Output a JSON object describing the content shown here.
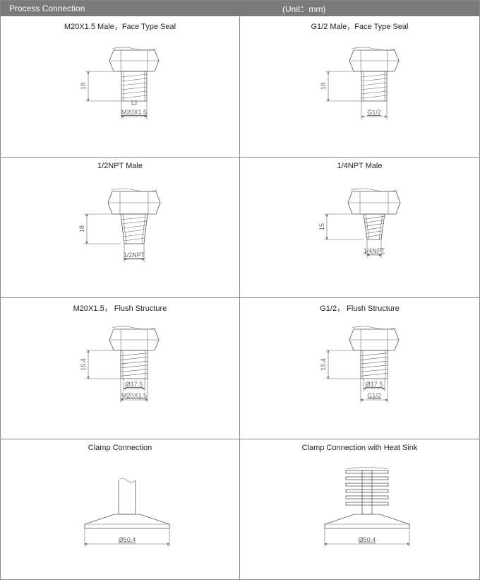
{
  "header": {
    "left": "Process    Connection",
    "right": "(Unit：mm)"
  },
  "header_bg": "#7a7a7a",
  "header_fg": "#ffffff",
  "border_color": "#888888",
  "line_color": "#666666",
  "text_color": "#222222",
  "dim_text_color": "#666666",
  "cells": [
    {
      "title": "M20X1.5 Male，Face Type Seal",
      "type": "hex-threaded",
      "height_label": "18",
      "thread_label": "M20X1.5",
      "hex_width": 70,
      "hex_height": 30,
      "shaft_width": 36,
      "shaft_height": 42,
      "threaded": true,
      "taper": false,
      "bottom_tooth": true
    },
    {
      "title": "G1/2 Male，Face Type Seal",
      "type": "hex-threaded",
      "height_label": "18",
      "thread_label": "G1/2",
      "hex_width": 70,
      "hex_height": 30,
      "shaft_width": 36,
      "shaft_height": 42,
      "threaded": true,
      "taper": false,
      "bottom_tooth": false
    },
    {
      "title": "1/2NPT Male",
      "type": "hex-threaded",
      "height_label": "18",
      "thread_label": "1/2NPT",
      "hex_width": 74,
      "hex_height": 32,
      "shaft_width": 38,
      "shaft_height": 42,
      "threaded": true,
      "taper": true,
      "bottom_tooth": false
    },
    {
      "title": "1/4NPT Male",
      "type": "hex-threaded",
      "height_label": "15",
      "thread_label": "1/4NPT",
      "hex_width": 74,
      "hex_height": 32,
      "shaft_width": 30,
      "shaft_height": 36,
      "threaded": true,
      "taper": true,
      "bottom_tooth": false
    },
    {
      "title": "M20X1.5， Flush Structure",
      "type": "hex-flush",
      "height_label": "15.4",
      "thread_label": "M20X1.5",
      "dia_label": "Ø17.5",
      "hex_width": 70,
      "hex_height": 30,
      "shaft_width": 38,
      "shaft_height": 40,
      "threaded": true,
      "taper": false
    },
    {
      "title": "G1/2， Flush Structure",
      "type": "hex-flush",
      "height_label": "15.4",
      "thread_label": "G1/2",
      "dia_label": "Ø17.5",
      "hex_width": 70,
      "hex_height": 30,
      "shaft_width": 38,
      "shaft_height": 40,
      "threaded": true,
      "taper": false
    },
    {
      "title": "Clamp Connection",
      "type": "clamp",
      "dia_label": "Ø50.4",
      "flange_width": 120,
      "flange_height": 56,
      "heatsink": false
    },
    {
      "title": "Clamp Connection with Heat Sink",
      "type": "clamp",
      "dia_label": "Ø50.4",
      "flange_width": 120,
      "flange_height": 56,
      "heatsink": true,
      "fin_count": 6,
      "fin_width": 60
    }
  ]
}
